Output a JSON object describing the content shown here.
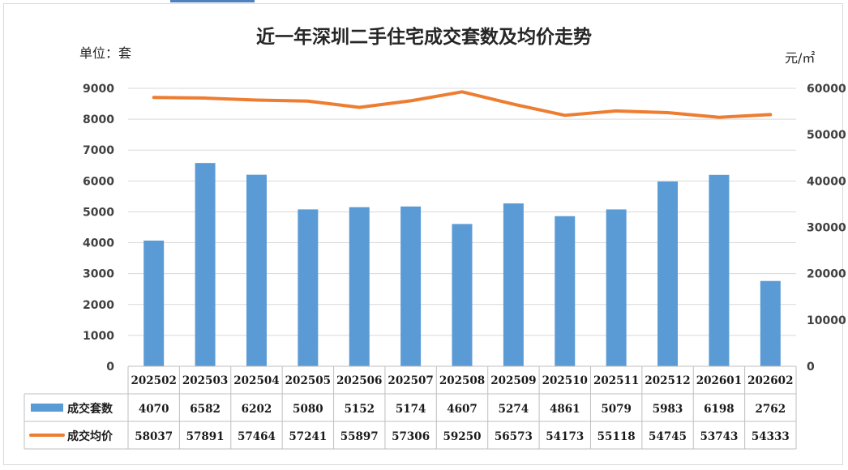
{
  "chart_data": {
    "type": "bar",
    "title": "近一年深圳二手住宅成交套数及均价走势",
    "ylabel": "单位：套",
    "y2label": "元/㎡",
    "ylim": [
      0,
      9000
    ],
    "yticks": [
      0,
      1000,
      2000,
      3000,
      4000,
      5000,
      6000,
      7000,
      8000,
      9000
    ],
    "y2lim": [
      0,
      60000
    ],
    "y2ticks": [
      0,
      10000,
      20000,
      30000,
      40000,
      50000,
      60000
    ],
    "grid": true,
    "legend": "data-table",
    "categories": [
      "202502",
      "202503",
      "202504",
      "202505",
      "202506",
      "202507",
      "202508",
      "202509",
      "202510",
      "202511",
      "202512",
      "202601",
      "202602"
    ],
    "series": [
      {
        "name": "成交套数",
        "type": "bar",
        "axis": "left",
        "color": "#5b9bd5",
        "values": [
          4070,
          6582,
          6202,
          5080,
          5152,
          5174,
          4607,
          5274,
          4861,
          5079,
          5983,
          6198,
          2762
        ]
      },
      {
        "name": "成交均价",
        "type": "line",
        "axis": "right",
        "color": "#ed7d31",
        "values": [
          58037,
          57891,
          57464,
          57241,
          55897,
          57306,
          59250,
          56573,
          54173,
          55118,
          54745,
          53743,
          54333
        ]
      }
    ]
  }
}
